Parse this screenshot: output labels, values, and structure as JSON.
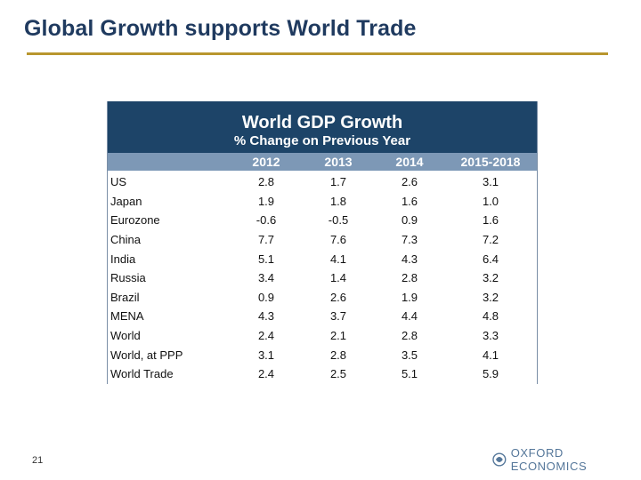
{
  "slide": {
    "title": "Global Growth supports World Trade",
    "page_number": "21",
    "logo_text": "OXFORD ECONOMICS",
    "colors": {
      "title": "#1f3a5f",
      "rule": "#b8962e",
      "table_header": "#1d4468",
      "column_header": "#7d98b6"
    }
  },
  "chart_data": {
    "type": "table",
    "title": "World GDP Growth",
    "subtitle": "% Change on Previous Year",
    "columns": [
      "",
      "2012",
      "2013",
      "2014",
      "2015-2018"
    ],
    "rows": [
      {
        "label": "US",
        "values": [
          "2.8",
          "1.7",
          "2.6",
          "3.1"
        ]
      },
      {
        "label": "Japan",
        "values": [
          "1.9",
          "1.8",
          "1.6",
          "1.0"
        ]
      },
      {
        "label": "Eurozone",
        "values": [
          "-0.6",
          "-0.5",
          "0.9",
          "1.6"
        ]
      },
      {
        "label": "China",
        "values": [
          "7.7",
          "7.6",
          "7.3",
          "7.2"
        ]
      },
      {
        "label": "India",
        "values": [
          "5.1",
          "4.1",
          "4.3",
          "6.4"
        ]
      },
      {
        "label": "Russia",
        "values": [
          "3.4",
          "1.4",
          "2.8",
          "3.2"
        ]
      },
      {
        "label": "Brazil",
        "values": [
          "0.9",
          "2.6",
          "1.9",
          "3.2"
        ]
      },
      {
        "label": "MENA",
        "values": [
          "4.3",
          "3.7",
          "4.4",
          "4.8"
        ]
      },
      {
        "label": "World",
        "values": [
          "2.4",
          "2.1",
          "2.8",
          "3.3"
        ]
      },
      {
        "label": "World, at PPP",
        "values": [
          "3.1",
          "2.8",
          "3.5",
          "4.1"
        ]
      },
      {
        "label": "World Trade",
        "values": [
          "2.4",
          "2.5",
          "5.1",
          "5.9"
        ]
      }
    ]
  }
}
